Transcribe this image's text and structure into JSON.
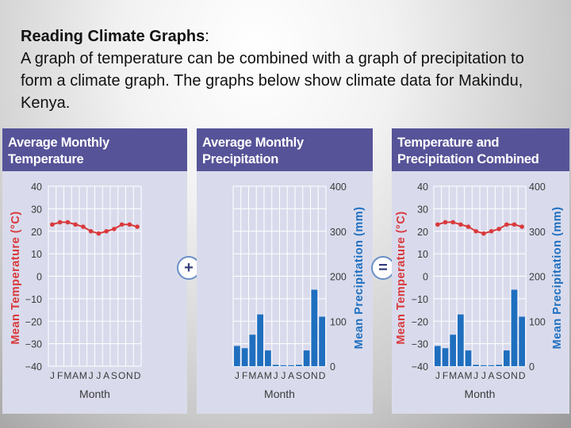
{
  "intro": {
    "heading": "Reading Climate Graphs",
    "colon": ":",
    "body": "A graph of temperature can be combined with a graph of precipitation to form a climate graph. The graphs below show climate data for Makindu, Kenya."
  },
  "operators": {
    "plus": "+",
    "equals": "="
  },
  "colors": {
    "panel_bg": "#d9dbec",
    "header_bg": "#565398",
    "temperature": "#d9393b",
    "precipitation": "#1f6fbf",
    "grid": "#ffffff"
  },
  "chart_data": [
    {
      "type": "line",
      "title_line1": "Average Monthly",
      "title_line2": "Temperature",
      "xlabel": "Month",
      "ylabel": "Mean Temperature (°C)",
      "months": [
        "J",
        "F",
        "M",
        "A",
        "M",
        "J",
        "J",
        "A",
        "S",
        "O",
        "N",
        "D"
      ],
      "ylim": [
        -40,
        40
      ],
      "yticks": [
        "40",
        "30",
        "20",
        "10",
        "0",
        "−10",
        "−20",
        "−30",
        "−40"
      ],
      "temperature": [
        23,
        24,
        24,
        23,
        22,
        20,
        19,
        20,
        21,
        23,
        23,
        22
      ]
    },
    {
      "type": "bar",
      "title_line1": "Average Monthly",
      "title_line2": "Precipitation",
      "xlabel": "Month",
      "ylabel": "Mean Precipitation (mm)",
      "months": [
        "J",
        "F",
        "M",
        "A",
        "M",
        "J",
        "J",
        "A",
        "S",
        "O",
        "N",
        "D"
      ],
      "ylim": [
        0,
        400
      ],
      "yticks": [
        "400",
        "300",
        "200",
        "100",
        "0"
      ],
      "precipitation": [
        45,
        40,
        70,
        115,
        35,
        3,
        2,
        2,
        3,
        35,
        170,
        110
      ]
    },
    {
      "type": "combined",
      "title_line1": "Temperature and",
      "title_line2": "Precipitation Combined",
      "xlabel": "Month",
      "ylabel_left": "Mean Temperature (°C)",
      "ylabel_right": "Mean Precipitation (mm)",
      "months": [
        "J",
        "F",
        "M",
        "A",
        "M",
        "J",
        "J",
        "A",
        "S",
        "O",
        "N",
        "D"
      ],
      "ylim_left": [
        -40,
        40
      ],
      "ylim_right": [
        0,
        400
      ],
      "yticks_left": [
        "40",
        "30",
        "20",
        "10",
        "0",
        "−10",
        "−20",
        "−30",
        "−40"
      ],
      "yticks_right": [
        "400",
        "300",
        "200",
        "100",
        "0"
      ],
      "temperature": [
        23,
        24,
        24,
        23,
        22,
        20,
        19,
        20,
        21,
        23,
        23,
        22
      ],
      "precipitation": [
        45,
        40,
        70,
        115,
        35,
        3,
        2,
        2,
        3,
        35,
        170,
        110
      ]
    }
  ]
}
